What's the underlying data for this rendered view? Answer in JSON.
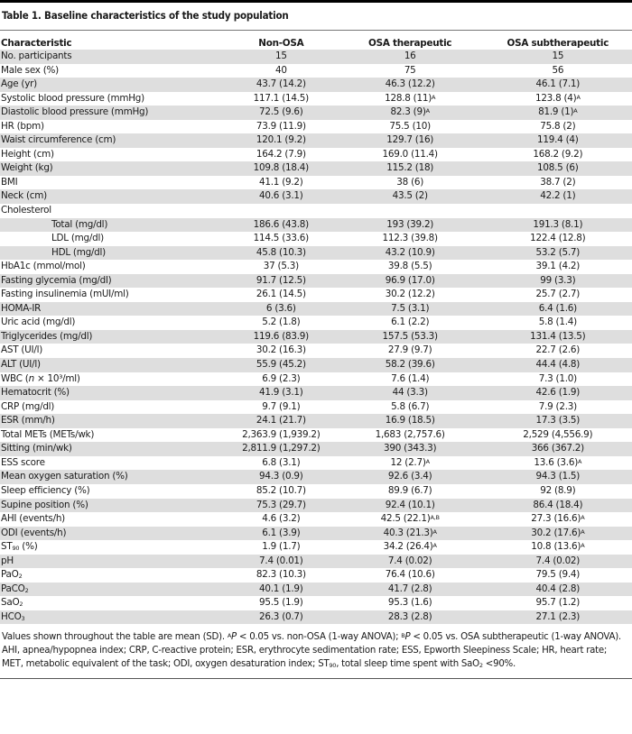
{
  "title": "Table 1. Baseline characteristics of the study population",
  "table": {
    "headers": [
      "Characteristic",
      "Non-OSA",
      "OSA therapeutic",
      "OSA subtherapeutic"
    ],
    "rows": [
      {
        "label": "No. participants",
        "indent": false,
        "cells": [
          "15",
          "16",
          "15"
        ]
      },
      {
        "label": "Male sex (%)",
        "indent": false,
        "cells": [
          "40",
          "75",
          "56"
        ]
      },
      {
        "label": "Age (yr)",
        "indent": false,
        "cells": [
          "43.7 (14.2)",
          "46.3 (12.2)",
          "46.1 (7.1)"
        ]
      },
      {
        "label": "Systolic blood pressure (mmHg)",
        "indent": false,
        "cells": [
          "117.1 (14.5)",
          "128.8 (11)",
          "123.8 (4)"
        ],
        "sups": [
          "",
          "A",
          "A"
        ]
      },
      {
        "label": "Diastolic blood pressure (mmHg)",
        "indent": false,
        "cells": [
          "72.5 (9.6)",
          "82.3 (9)",
          "81.9 (1)"
        ],
        "sups": [
          "",
          "A",
          "A"
        ]
      },
      {
        "label": "HR (bpm)",
        "indent": false,
        "cells": [
          "73.9 (11.9)",
          "75.5 (10)",
          "75.8 (2)"
        ]
      },
      {
        "label": "Waist circumference (cm)",
        "indent": false,
        "cells": [
          "120.1 (9.2)",
          "129.7 (16)",
          "119.4 (4)"
        ]
      },
      {
        "label": "Height (cm)",
        "indent": false,
        "cells": [
          "164.2 (7.9)",
          "169.0 (11.4)",
          "168.2 (9.2)"
        ]
      },
      {
        "label": "Weight (kg)",
        "indent": false,
        "cells": [
          "109.8 (18.4)",
          "115.2 (18)",
          "108.5 (6)"
        ]
      },
      {
        "label": "BMI",
        "indent": false,
        "cells": [
          "41.1 (9.2)",
          "38 (6)",
          "38.7 (2)"
        ]
      },
      {
        "label": "Neck (cm)",
        "indent": false,
        "cells": [
          "40.6 (3.1)",
          "43.5 (2)",
          "42.2 (1)"
        ]
      },
      {
        "label": "Cholesterol",
        "indent": false,
        "cells": [
          "",
          "",
          ""
        ]
      },
      {
        "label": "Total (mg/dl)",
        "indent": true,
        "cells": [
          "186.6 (43.8)",
          "193 (39.2)",
          "191.3 (8.1)"
        ]
      },
      {
        "label": "LDL (mg/dl)",
        "indent": true,
        "cells": [
          "114.5 (33.6)",
          "112.3 (39.8)",
          "122.4 (12.8)"
        ]
      },
      {
        "label": "HDL (mg/dl)",
        "indent": true,
        "cells": [
          "45.8 (10.3)",
          "43.2 (10.9)",
          "53.2 (5.7)"
        ]
      },
      {
        "label": "HbA1c (mmol/mol)",
        "indent": false,
        "cells": [
          "37 (5.3)",
          "39.8 (5.5)",
          "39.1 (4.2)"
        ]
      },
      {
        "label": "Fasting glycemia (mg/dl)",
        "indent": false,
        "cells": [
          "91.7 (12.5)",
          "96.9 (17.0)",
          "99 (3.3)"
        ]
      },
      {
        "label": "Fasting insulinemia (mUI/ml)",
        "indent": false,
        "cells": [
          "26.1 (14.5)",
          "30.2 (12.2)",
          "25.7 (2.7)"
        ]
      },
      {
        "label": "HOMA-IR",
        "indent": false,
        "cells": [
          "6 (3.6)",
          "7.5 (3.1)",
          "6.4 (1.6)"
        ]
      },
      {
        "label": "Uric acid (mg/dl)",
        "indent": false,
        "cells": [
          "5.2 (1.8)",
          "6.1 (2.2)",
          "5.8 (1.4)"
        ]
      },
      {
        "label": "Triglycerides (mg/dl)",
        "indent": false,
        "cells": [
          "119.6 (83.9)",
          "157.5 (53.3)",
          "131.4 (13.5)"
        ]
      },
      {
        "label": "AST (UI/l)",
        "indent": false,
        "cells": [
          "30.2 (16.3)",
          "27.9 (9.7)",
          "22.7 (2.6)"
        ]
      },
      {
        "label": "ALT (UI/l)",
        "indent": false,
        "cells": [
          "55.9 (45.2)",
          "58.2 (39.6)",
          "44.4 (4.8)"
        ]
      },
      {
        "label": "WBC (n × 10³/ml)",
        "indent": false,
        "cells": [
          "6.9 (2.3)",
          "7.6 (1.4)",
          "7.3 (1.0)"
        ]
      },
      {
        "label": "Hematocrit (%)",
        "indent": false,
        "cells": [
          "41.9 (3.1)",
          "44 (3.3)",
          "42.6 (1.9)"
        ]
      },
      {
        "label": "CRP (mg/dl)",
        "indent": false,
        "cells": [
          "9.7 (9.1)",
          "5.8 (6.7)",
          "7.9 (2.3)"
        ]
      },
      {
        "label": "ESR (mm/h)",
        "indent": false,
        "cells": [
          "24.1 (21.7)",
          "16.9 (18.5)",
          "17.3 (3.5)"
        ]
      },
      {
        "label": "Total METs (METs/wk)",
        "indent": false,
        "cells": [
          "2,363.9 (1,939.2)",
          "1,683 (2,757.6)",
          "2,529 (4,556.9)"
        ]
      },
      {
        "label": "Sitting (min/wk)",
        "indent": false,
        "cells": [
          "2,811.9 (1,297.2)",
          "390 (343.3)",
          "366 (367.2)"
        ]
      },
      {
        "label": "ESS score",
        "indent": false,
        "cells": [
          "6.8 (3.1)",
          "12 (2.7)",
          "13.6 (3.6)"
        ],
        "sups": [
          "",
          "A",
          "A"
        ]
      },
      {
        "label": "Mean oxygen saturation (%)",
        "indent": false,
        "cells": [
          "94.3 (0.9)",
          "92.6 (3.4)",
          "94.3 (1.5)"
        ]
      },
      {
        "label": "Sleep efficiency (%)",
        "indent": false,
        "cells": [
          "85.2 (10.7)",
          "89.9 (6.7)",
          "92 (8.9)"
        ]
      },
      {
        "label": "Supine position (%)",
        "indent": false,
        "cells": [
          "75.3 (29.7)",
          "92.4 (10.1)",
          "86.4 (18.4)"
        ]
      },
      {
        "label": "AHI (events/h)",
        "indent": false,
        "cells": [
          "4.6 (3.2)",
          "42.5 (22.1)",
          "27.3 (16.6)"
        ],
        "sups": [
          "",
          "A,B",
          "A"
        ]
      },
      {
        "label": "ODI (events/h)",
        "indent": false,
        "cells": [
          "6.1 (3.9)",
          "40.3 (21.3)",
          "30.2 (17.6)"
        ],
        "sups": [
          "",
          "A",
          "A"
        ]
      },
      {
        "label": "ST",
        "label_sub": "90",
        "label_suffix": " (%)",
        "indent": false,
        "cells": [
          "1.9 (1.7)",
          "34.2 (26.4)",
          "10.8 (13.6)"
        ],
        "sups": [
          "",
          "A",
          "A"
        ]
      },
      {
        "label": "pH",
        "indent": false,
        "cells": [
          "7.4 (0.01)",
          "7.4 (0.02)",
          "7.4 (0.02)"
        ]
      },
      {
        "label": "PaO",
        "label_sub": "2",
        "label_suffix": "",
        "indent": false,
        "cells": [
          "82.3 (10.3)",
          "76.4 (10.6)",
          "79.5 (9.4)"
        ]
      },
      {
        "label": "PaCO",
        "label_sub": "2",
        "label_suffix": "",
        "indent": false,
        "cells": [
          "40.1 (1.9)",
          "41.7 (2.8)",
          "40.4 (2.8)"
        ]
      },
      {
        "label": "SaO",
        "label_sub": "2",
        "label_suffix": "",
        "indent": false,
        "cells": [
          "95.5 (1.9)",
          "95.3 (1.6)",
          "95.7 (1.2)"
        ]
      },
      {
        "label": "HCO",
        "label_sub": "3",
        "label_suffix": "",
        "indent": false,
        "cells": [
          "26.3 (0.7)",
          "28.3 (2.8)",
          "27.1 (2.3)"
        ]
      }
    ]
  },
  "footnote": {
    "part1": "Values shown throughout the table are mean (SD). ",
    "supA": "A",
    "pA": "P",
    "part2": " < 0.05 vs. non-OSA (1-way ANOVA); ",
    "supB": "B",
    "pB": "P",
    "part3": " < 0.05 vs. OSA subtherapeutic (1-way ANOVA). AHI, apnea/hypopnea index; CRP, C-reactive protein; ESR, erythrocyte sedimentation rate; ESS, Epworth Sleepiness Scale; HR, heart rate; MET, metabolic equivalent of the task; ODI, oxygen desaturation index; ST",
    "sub90": "90",
    "part4": ", total sleep time spent with SaO",
    "sub2": "2",
    "part5": " <90%."
  },
  "colors": {
    "row_shade": "#dedede",
    "top_bar": "#000000",
    "rule": "#777777"
  }
}
